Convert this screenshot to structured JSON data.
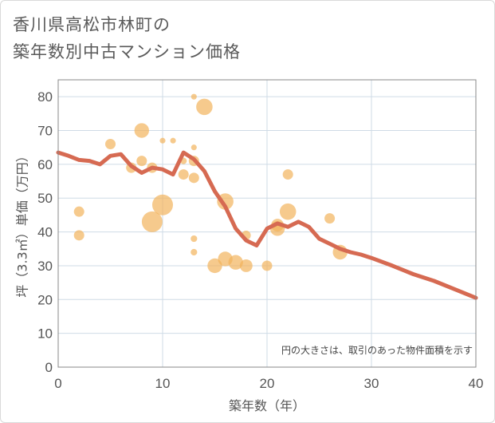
{
  "title_lines": [
    "香川県高松市林町の",
    "築年数別中古マンション価格"
  ],
  "chart_data": {
    "type": "scatter",
    "xlabel": "築年数（年）",
    "ylabel": "坪（3.3㎡）単価（万円）",
    "xlim": [
      0,
      40
    ],
    "ylim": [
      0,
      85
    ],
    "x_ticks": [
      0,
      10,
      20,
      30,
      40
    ],
    "y_ticks": [
      0,
      10,
      20,
      30,
      40,
      50,
      60,
      70,
      80
    ],
    "grid": true,
    "note": "円の大きさは、取引のあった物件面積を示す",
    "bubble_color": "#f2b45c",
    "line_color": "#d66a52",
    "bubbles": [
      {
        "x": 2,
        "y": 46,
        "size": 1
      },
      {
        "x": 2,
        "y": 39,
        "size": 1
      },
      {
        "x": 5,
        "y": 66,
        "size": 1
      },
      {
        "x": 7,
        "y": 59,
        "size": 1
      },
      {
        "x": 8,
        "y": 70,
        "size": 2
      },
      {
        "x": 8,
        "y": 61,
        "size": 1
      },
      {
        "x": 9,
        "y": 59,
        "size": 1
      },
      {
        "x": 9,
        "y": 43,
        "size": 4
      },
      {
        "x": 10,
        "y": 48,
        "size": 4
      },
      {
        "x": 10,
        "y": 67,
        "size": 0.3
      },
      {
        "x": 11,
        "y": 67,
        "size": 0.3
      },
      {
        "x": 12,
        "y": 57,
        "size": 1
      },
      {
        "x": 12,
        "y": 61,
        "size": 0.4
      },
      {
        "x": 13,
        "y": 80,
        "size": 0.3
      },
      {
        "x": 13,
        "y": 61,
        "size": 1
      },
      {
        "x": 13,
        "y": 56,
        "size": 1
      },
      {
        "x": 13,
        "y": 38,
        "size": 0.4
      },
      {
        "x": 13,
        "y": 34,
        "size": 0.4
      },
      {
        "x": 13,
        "y": 65,
        "size": 0.3
      },
      {
        "x": 14,
        "y": 77,
        "size": 2.5
      },
      {
        "x": 15,
        "y": 30,
        "size": 2
      },
      {
        "x": 16,
        "y": 49,
        "size": 2.5
      },
      {
        "x": 16,
        "y": 32,
        "size": 2
      },
      {
        "x": 17,
        "y": 31,
        "size": 2
      },
      {
        "x": 18,
        "y": 30,
        "size": 1.5
      },
      {
        "x": 18,
        "y": 39,
        "size": 0.8
      },
      {
        "x": 20,
        "y": 30,
        "size": 1
      },
      {
        "x": 21,
        "y": 41,
        "size": 2
      },
      {
        "x": 21,
        "y": 42,
        "size": 1.5
      },
      {
        "x": 22,
        "y": 57,
        "size": 1
      },
      {
        "x": 22,
        "y": 46,
        "size": 2.5
      },
      {
        "x": 26,
        "y": 44,
        "size": 1
      },
      {
        "x": 27,
        "y": 34,
        "size": 2
      }
    ],
    "trend": {
      "x": [
        0,
        1,
        2,
        3,
        4,
        5,
        6,
        7,
        8,
        9,
        10,
        11,
        12,
        13,
        14,
        15,
        16,
        17,
        18,
        19,
        20,
        21,
        22,
        23,
        24,
        25,
        26,
        27,
        28,
        29,
        30,
        32,
        34,
        36,
        38,
        40
      ],
      "y": [
        63.5,
        62.5,
        61.3,
        61,
        60,
        62.5,
        63,
        59.5,
        57.5,
        59,
        58.5,
        57,
        63.5,
        61.5,
        58,
        52,
        47.5,
        41,
        37.5,
        36,
        41,
        42.5,
        41.5,
        43,
        41.5,
        38,
        36.5,
        35,
        34,
        33.3,
        32.3,
        30,
        27.5,
        25.5,
        23,
        20.5
      ]
    }
  }
}
